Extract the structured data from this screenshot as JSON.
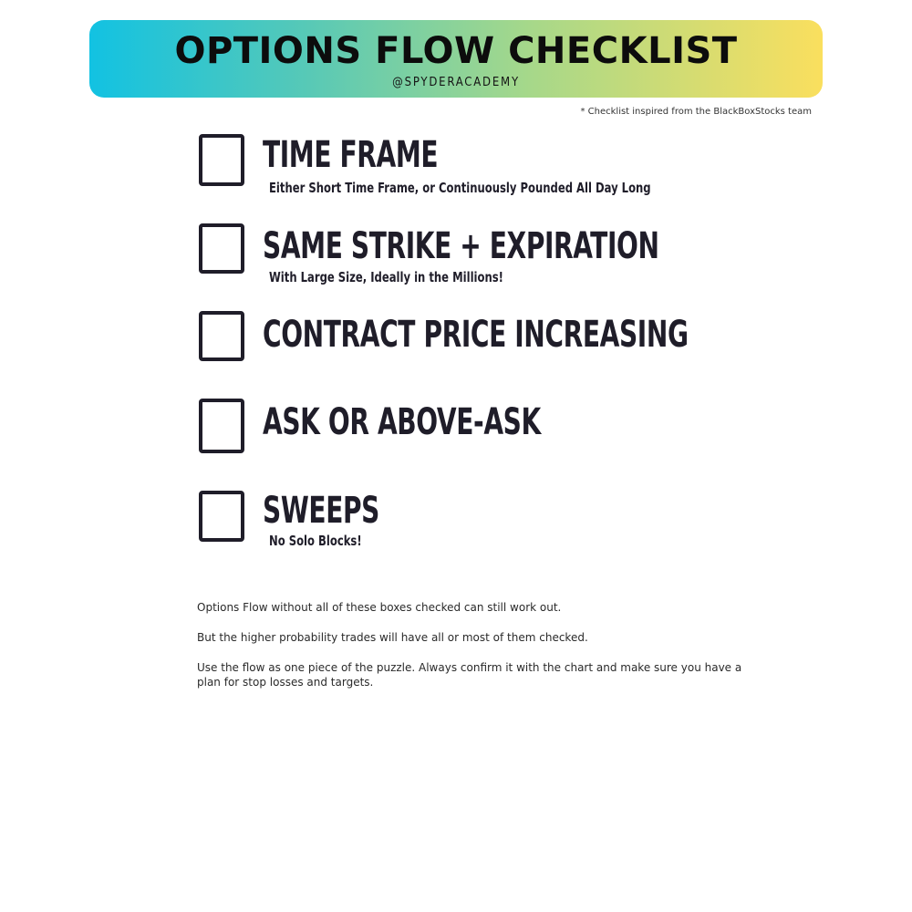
{
  "header": {
    "title": "OPTIONS FLOW CHECKLIST",
    "handle": "@SPYDERACADEMY"
  },
  "credit": "* Checklist inspired from the BlackBoxStocks team",
  "checklist": [
    {
      "title": "TIME FRAME",
      "subtitle": "Either Short Time Frame, or Continuously Pounded All Day Long",
      "checked": false
    },
    {
      "title": "SAME STRIKE + EXPIRATION",
      "subtitle": "With Large Size, Ideally in the Millions!",
      "checked": false
    },
    {
      "title": "CONTRACT PRICE INCREASING",
      "subtitle": "",
      "checked": false
    },
    {
      "title": "ASK OR ABOVE-ASK",
      "subtitle": "",
      "checked": false
    },
    {
      "title": "SWEEPS",
      "subtitle": "No Solo Blocks!",
      "checked": false
    }
  ],
  "notes": [
    "Options Flow without all of these boxes checked can still work out.",
    "But the higher probability trades will have all or most of them checked.",
    "Use the flow as one piece of the puzzle.  Always confirm it with the chart and make sure you have a plan for stop losses and targets."
  ],
  "colors": {
    "banner_gradient_start": "#12c2e2",
    "banner_gradient_end": "#fadf5e",
    "text_dark": "#1f1d29"
  }
}
